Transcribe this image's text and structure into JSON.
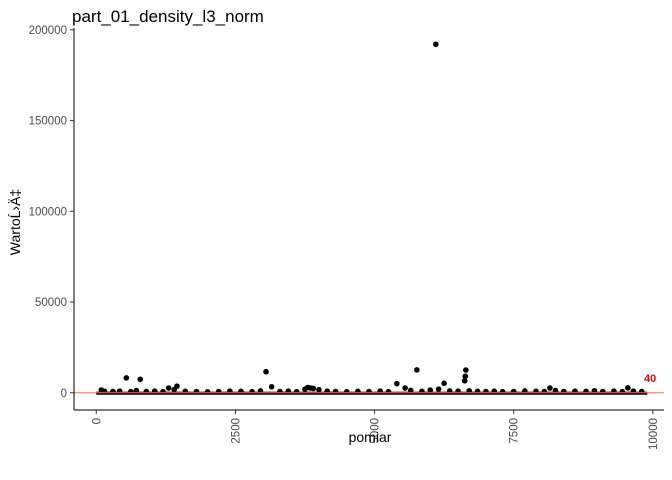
{
  "chart_data": {
    "type": "scatter",
    "title": "part_01_density_l3_norm",
    "xlabel": "pomiar",
    "ylabel": "WartoĹ›Ä‡",
    "xlim": [
      -400,
      10200
    ],
    "ylim": [
      -9500,
      201000
    ],
    "x_ticks": [
      0,
      2500,
      5000,
      7500,
      10000
    ],
    "x_tick_labels": [
      "0",
      "2500",
      "5000",
      "7500",
      "10000"
    ],
    "y_ticks": [
      0,
      50000,
      100000,
      150000,
      200000
    ],
    "y_tick_labels": [
      "0",
      "50000",
      "100000",
      "150000",
      "200000"
    ],
    "grid": false,
    "reference_line": {
      "y": 0,
      "color": "#e8775f"
    },
    "baseline_band": {
      "x_start": 0,
      "x_end": 9900,
      "y_max": 600
    },
    "points": [
      {
        "x": 90,
        "y": 1500
      },
      {
        "x": 150,
        "y": 800
      },
      {
        "x": 300,
        "y": 700
      },
      {
        "x": 420,
        "y": 900
      },
      {
        "x": 540,
        "y": 8200
      },
      {
        "x": 620,
        "y": 600
      },
      {
        "x": 720,
        "y": 1200
      },
      {
        "x": 790,
        "y": 7400
      },
      {
        "x": 900,
        "y": 700
      },
      {
        "x": 1050,
        "y": 900
      },
      {
        "x": 1200,
        "y": 600
      },
      {
        "x": 1300,
        "y": 2600
      },
      {
        "x": 1400,
        "y": 1800
      },
      {
        "x": 1450,
        "y": 3600
      },
      {
        "x": 1600,
        "y": 800
      },
      {
        "x": 1800,
        "y": 700
      },
      {
        "x": 2000,
        "y": 500
      },
      {
        "x": 2200,
        "y": 700
      },
      {
        "x": 2400,
        "y": 900
      },
      {
        "x": 2600,
        "y": 800
      },
      {
        "x": 2800,
        "y": 600
      },
      {
        "x": 2950,
        "y": 1000
      },
      {
        "x": 3050,
        "y": 11600
      },
      {
        "x": 3150,
        "y": 3300
      },
      {
        "x": 3300,
        "y": 700
      },
      {
        "x": 3450,
        "y": 900
      },
      {
        "x": 3600,
        "y": 600
      },
      {
        "x": 3750,
        "y": 1900
      },
      {
        "x": 3800,
        "y": 2900
      },
      {
        "x": 3850,
        "y": 2600
      },
      {
        "x": 3900,
        "y": 2400
      },
      {
        "x": 4000,
        "y": 1700
      },
      {
        "x": 4150,
        "y": 900
      },
      {
        "x": 4300,
        "y": 700
      },
      {
        "x": 4500,
        "y": 600
      },
      {
        "x": 4700,
        "y": 800
      },
      {
        "x": 4900,
        "y": 700
      },
      {
        "x": 5100,
        "y": 900
      },
      {
        "x": 5250,
        "y": 600
      },
      {
        "x": 5400,
        "y": 5000
      },
      {
        "x": 5550,
        "y": 2600
      },
      {
        "x": 5650,
        "y": 1300
      },
      {
        "x": 5760,
        "y": 12600
      },
      {
        "x": 5850,
        "y": 800
      },
      {
        "x": 6000,
        "y": 1500
      },
      {
        "x": 6100,
        "y": 192000
      },
      {
        "x": 6150,
        "y": 2000
      },
      {
        "x": 6250,
        "y": 5200
      },
      {
        "x": 6350,
        "y": 1000
      },
      {
        "x": 6500,
        "y": 900
      },
      {
        "x": 6620,
        "y": 6600
      },
      {
        "x": 6630,
        "y": 9100
      },
      {
        "x": 6640,
        "y": 12500
      },
      {
        "x": 6700,
        "y": 1100
      },
      {
        "x": 6850,
        "y": 800
      },
      {
        "x": 7000,
        "y": 700
      },
      {
        "x": 7150,
        "y": 900
      },
      {
        "x": 7300,
        "y": 600
      },
      {
        "x": 7500,
        "y": 700
      },
      {
        "x": 7700,
        "y": 1000
      },
      {
        "x": 7900,
        "y": 800
      },
      {
        "x": 8050,
        "y": 700
      },
      {
        "x": 8150,
        "y": 2600
      },
      {
        "x": 8250,
        "y": 1200
      },
      {
        "x": 8400,
        "y": 700
      },
      {
        "x": 8600,
        "y": 900
      },
      {
        "x": 8800,
        "y": 800
      },
      {
        "x": 8950,
        "y": 1100
      },
      {
        "x": 9100,
        "y": 700
      },
      {
        "x": 9300,
        "y": 900
      },
      {
        "x": 9450,
        "y": 600
      },
      {
        "x": 9550,
        "y": 2700
      },
      {
        "x": 9650,
        "y": 900
      },
      {
        "x": 9800,
        "y": 700
      }
    ],
    "annotations": [
      {
        "x": 9950,
        "y": 6000,
        "text": "40",
        "color": "#ff0000"
      }
    ]
  }
}
